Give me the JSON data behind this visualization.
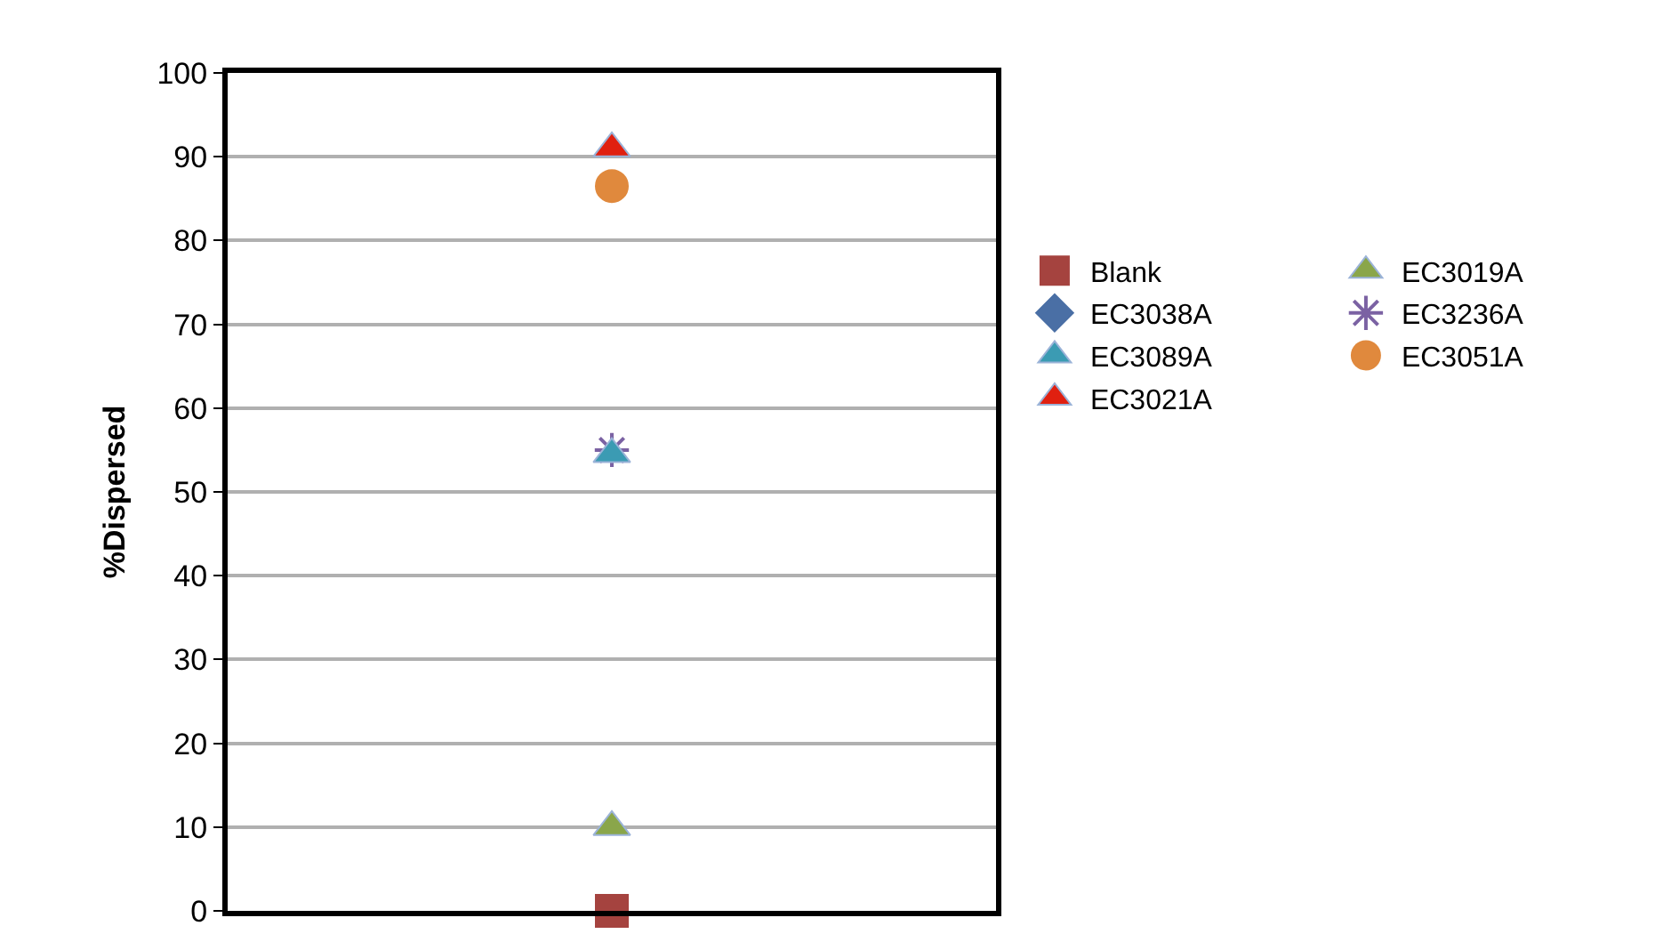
{
  "chart_data": {
    "type": "scatter",
    "ylabel": "%Dispersed",
    "categories": [
      null
    ],
    "tick_labels": "y",
    "ylim": [
      0,
      100
    ],
    "yticks": [
      0,
      10,
      20,
      30,
      40,
      50,
      60,
      70,
      80,
      90,
      100
    ],
    "grid": "y",
    "legend": "right",
    "series": [
      {
        "name": "Blank",
        "color": "#a5433f",
        "marker": "square",
        "values": [
          0
        ]
      },
      {
        "name": "EC3019A",
        "color": "#8aa64a",
        "marker": "triangle",
        "values": [
          10
        ]
      },
      {
        "name": "EC3038A",
        "color": "#4a6fa5",
        "marker": "diamond",
        "values": [
          null
        ]
      },
      {
        "name": "EC3236A",
        "color": "#7b62a3",
        "marker": "cross",
        "values": [
          55
        ]
      },
      {
        "name": "EC3089A",
        "color": "#3b9bb3",
        "marker": "triangle",
        "values": [
          54.5
        ]
      },
      {
        "name": "EC3051A",
        "color": "#e0893d",
        "marker": "circle",
        "values": [
          86.5
        ]
      },
      {
        "name": "EC3021A",
        "color": "#e02010",
        "marker": "triangle",
        "values": [
          91
        ]
      }
    ]
  }
}
